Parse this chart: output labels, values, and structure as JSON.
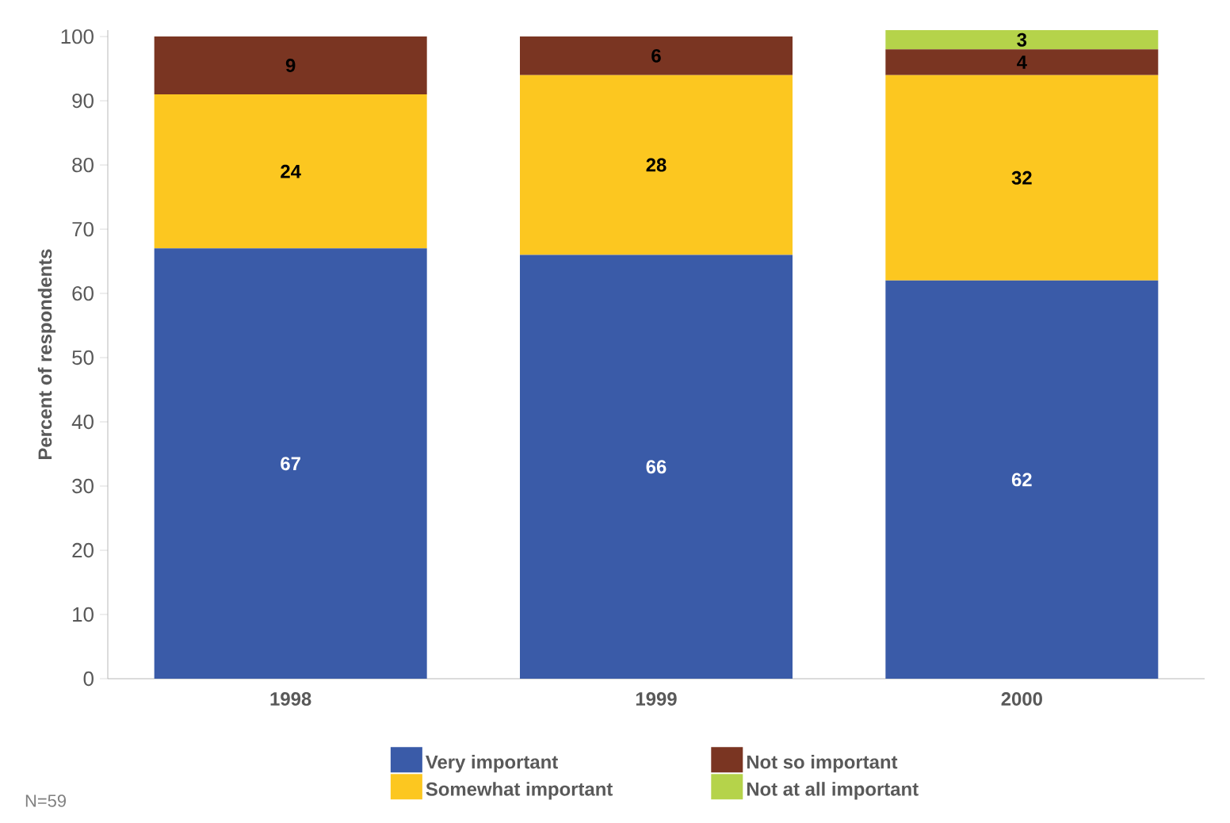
{
  "chart_data": {
    "type": "bar",
    "stacked": true,
    "ylabel": "Percent of respondents",
    "categories": [
      "1998",
      "1999",
      "2000"
    ],
    "series": [
      {
        "name": "Very important",
        "color": "#3a5ba8",
        "values": [
          67,
          66,
          62
        ]
      },
      {
        "name": "Somewhat important",
        "color": "#fcc720",
        "values": [
          24,
          28,
          32
        ]
      },
      {
        "name": "Not so important",
        "color": "#7a3522",
        "values": [
          9,
          6,
          4
        ]
      },
      {
        "name": "Not at all important",
        "color": "#b5d34a",
        "values": [
          null,
          null,
          3
        ]
      }
    ],
    "ylim": [
      0,
      101
    ],
    "yticks": [
      0,
      10,
      20,
      30,
      40,
      50,
      60,
      70,
      80,
      90,
      100
    ],
    "data_labels": true,
    "grid": false,
    "legend": "bottom",
    "annotations": [
      "N=59"
    ]
  }
}
